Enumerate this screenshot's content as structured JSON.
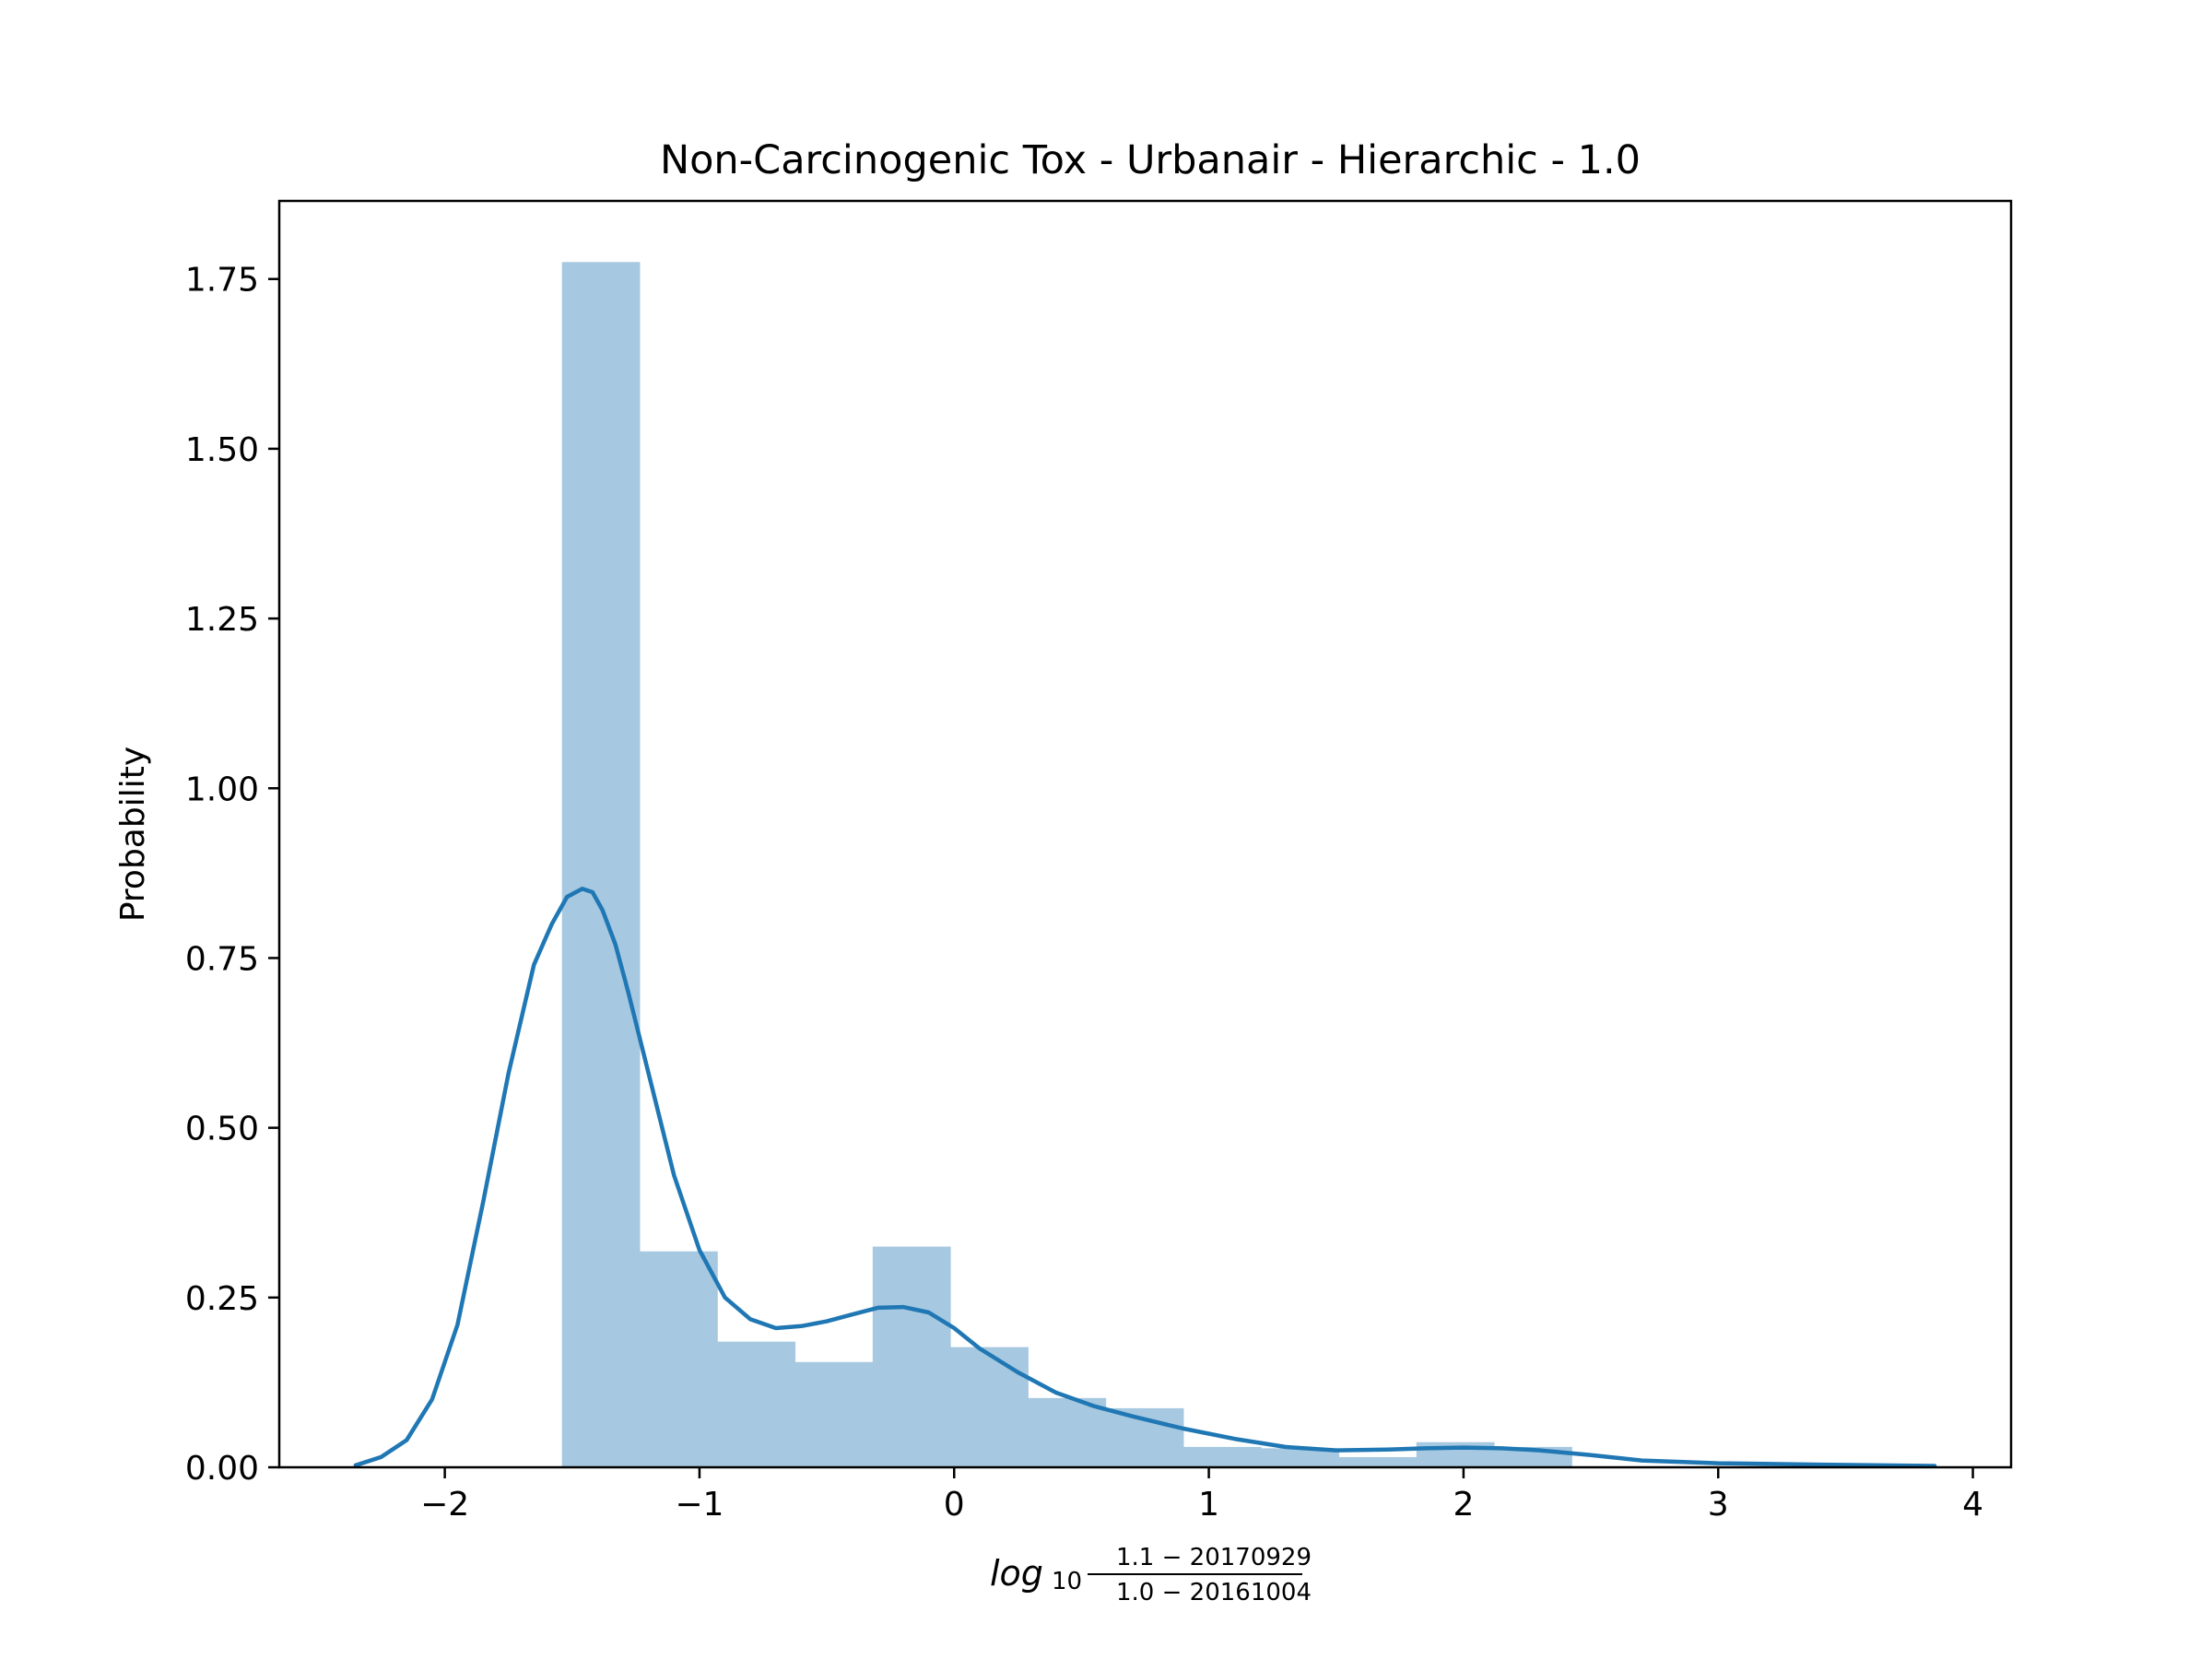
{
  "chart_data": {
    "type": "bar",
    "title": "Non-Carcinogenic Tox - Urbanair - Hierarchic - 1.0",
    "ylabel": "Probability",
    "xlabel": {
      "log": "log",
      "base": "10",
      "numerator": "1.1 − 20170929",
      "denominator": "1.0 − 20161004"
    },
    "xlim": [
      -2.65,
      4.15
    ],
    "ylim": [
      0,
      1.865
    ],
    "xticks": [
      -2,
      -1,
      0,
      1,
      2,
      3,
      4
    ],
    "xtick_labels": [
      "−2",
      "−1",
      "0",
      "1",
      "2",
      "3",
      "4"
    ],
    "yticks": [
      0,
      0.25,
      0.5,
      0.75,
      1.0,
      1.25,
      1.5,
      1.75
    ],
    "ytick_labels": [
      "0.00",
      "0.25",
      "0.50",
      "0.75",
      "1.00",
      "1.25",
      "1.50",
      "1.75"
    ],
    "grid": false,
    "colors": {
      "bars": "#a6c8e0",
      "kde": "#1f77b4",
      "axes": "#000000"
    },
    "histogram": {
      "bin_edges": [
        -1.54,
        -1.235,
        -0.93,
        -0.625,
        -0.32,
        -0.015,
        0.29,
        0.595,
        0.9,
        1.205,
        1.51,
        1.815,
        2.12,
        2.425
      ],
      "values": [
        1.775,
        0.318,
        0.185,
        0.155,
        0.325,
        0.177,
        0.102,
        0.087,
        0.03,
        0.028,
        0.015,
        0.037,
        0.03
      ]
    },
    "kde": {
      "x": [
        -2.35,
        -2.25,
        -2.15,
        -2.05,
        -1.95,
        -1.85,
        -1.75,
        -1.65,
        -1.58,
        -1.52,
        -1.46,
        -1.42,
        -1.38,
        -1.33,
        -1.28,
        -1.2,
        -1.1,
        -1.0,
        -0.9,
        -0.8,
        -0.7,
        -0.6,
        -0.5,
        -0.4,
        -0.3,
        -0.2,
        -0.1,
        0.0,
        0.1,
        0.25,
        0.4,
        0.55,
        0.7,
        0.9,
        1.1,
        1.3,
        1.5,
        1.7,
        1.85,
        2.0,
        2.15,
        2.3,
        2.5,
        2.7,
        3.0,
        3.4,
        3.85
      ],
      "y": [
        0.003,
        0.015,
        0.04,
        0.1,
        0.21,
        0.39,
        0.58,
        0.74,
        0.8,
        0.84,
        0.852,
        0.847,
        0.82,
        0.77,
        0.7,
        0.58,
        0.43,
        0.32,
        0.25,
        0.218,
        0.205,
        0.208,
        0.215,
        0.225,
        0.235,
        0.236,
        0.228,
        0.205,
        0.175,
        0.14,
        0.11,
        0.09,
        0.075,
        0.057,
        0.042,
        0.03,
        0.025,
        0.026,
        0.028,
        0.029,
        0.028,
        0.025,
        0.018,
        0.01,
        0.006,
        0.004,
        0.002
      ]
    }
  }
}
